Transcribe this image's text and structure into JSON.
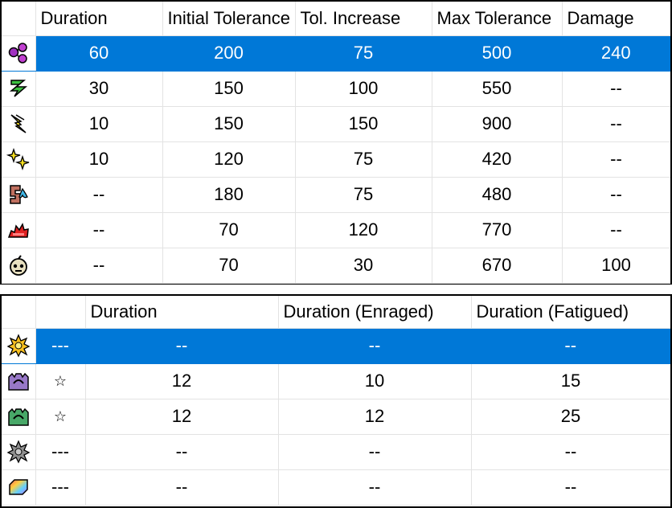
{
  "table1": {
    "headers": [
      "Duration",
      "Initial Tolerance",
      "Tol. Increase",
      "Max Tolerance",
      "Damage"
    ],
    "rows": [
      {
        "icon": "purple-molecule-icon",
        "duration": "60",
        "initial_tolerance": "200",
        "tol_increase": "75",
        "max_tolerance": "500",
        "damage": "240"
      },
      {
        "icon": "green-zigzag-icon",
        "duration": "30",
        "initial_tolerance": "150",
        "tol_increase": "100",
        "max_tolerance": "550",
        "damage": "--"
      },
      {
        "icon": "yellow-lightning-icon",
        "duration": "10",
        "initial_tolerance": "150",
        "tol_increase": "150",
        "max_tolerance": "900",
        "damage": "--"
      },
      {
        "icon": "yellow-sparkle-icon",
        "duration": "10",
        "initial_tolerance": "120",
        "tol_increase": "75",
        "max_tolerance": "420",
        "damage": "--"
      },
      {
        "icon": "mud-water-icon",
        "duration": "--",
        "initial_tolerance": "180",
        "tol_increase": "75",
        "max_tolerance": "480",
        "damage": "--"
      },
      {
        "icon": "red-blast-icon",
        "duration": "--",
        "initial_tolerance": "70",
        "tol_increase": "120",
        "max_tolerance": "770",
        "damage": "--"
      },
      {
        "icon": "bomb-skull-icon",
        "duration": "--",
        "initial_tolerance": "70",
        "tol_increase": "30",
        "max_tolerance": "670",
        "damage": "100"
      }
    ]
  },
  "table2": {
    "headers": [
      "Duration",
      "Duration (Enraged)",
      "Duration (Fatigued)"
    ],
    "rows": [
      {
        "icon": "yellow-flower-trap-icon",
        "mark": "---",
        "duration": "--",
        "enraged": "--",
        "fatigued": "--"
      },
      {
        "icon": "purple-shock-trap-icon",
        "mark": "☆",
        "duration": "12",
        "enraged": "10",
        "fatigued": "15"
      },
      {
        "icon": "green-pitfall-trap-icon",
        "mark": "☆",
        "duration": "12",
        "enraged": "12",
        "fatigued": "25"
      },
      {
        "icon": "gray-flower-trap-icon",
        "mark": "---",
        "duration": "--",
        "enraged": "--",
        "fatigued": "--"
      },
      {
        "icon": "rainbow-gem-icon",
        "mark": "---",
        "duration": "--",
        "enraged": "--",
        "fatigued": "--"
      }
    ]
  },
  "colors": {
    "selection": "#0078d7",
    "grid": "#e3e3e3"
  }
}
